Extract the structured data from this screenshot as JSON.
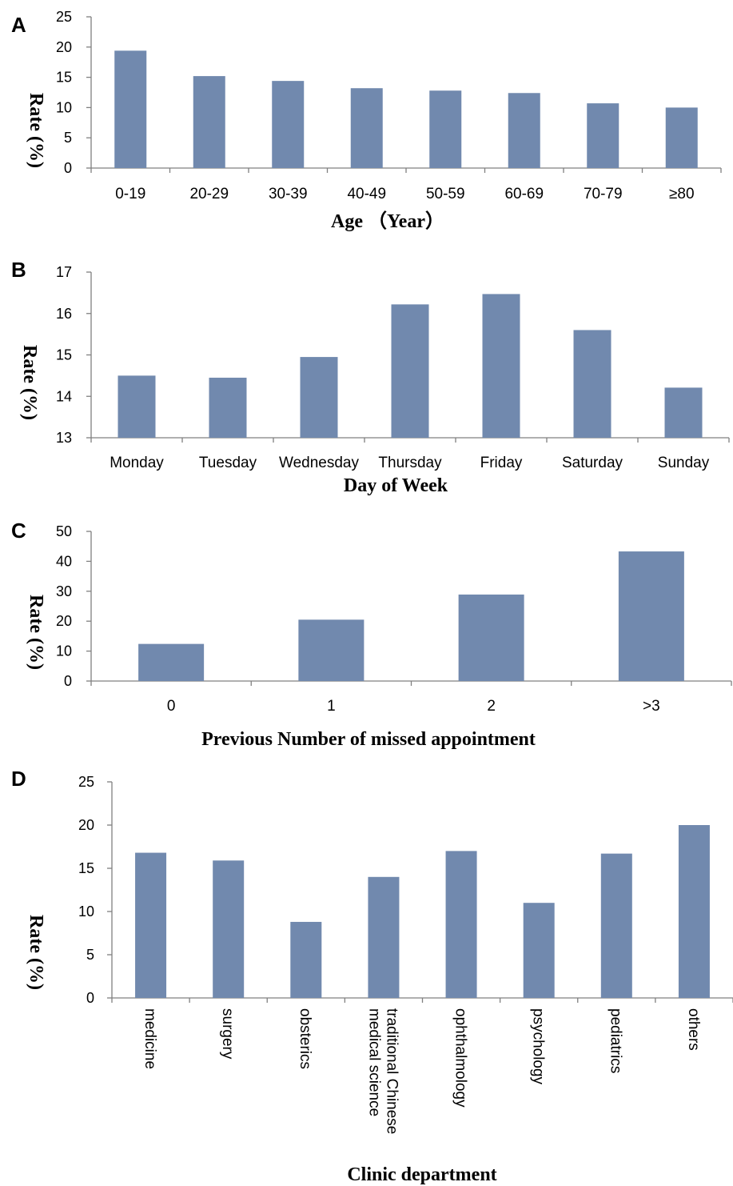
{
  "colors": {
    "bar": "#7189ae",
    "axis": "#808080"
  },
  "chart_data": [
    {
      "panel": "A",
      "type": "bar",
      "categories": [
        "0-19",
        "20-29",
        "30-39",
        "40-49",
        "50-59",
        "60-69",
        "70-79",
        "≥80"
      ],
      "values": [
        19.4,
        15.2,
        14.4,
        13.2,
        12.8,
        12.4,
        10.7,
        10.0
      ],
      "xlabel": "Age （Year）",
      "ylabel": "Rate (%)",
      "ylim": [
        0,
        25
      ],
      "yticks": [
        0,
        5,
        10,
        15,
        20,
        25
      ],
      "grid": false,
      "legend": "none"
    },
    {
      "panel": "B",
      "type": "bar",
      "categories": [
        "Monday",
        "Tuesday",
        "Wednesday",
        "Thursday",
        "Friday",
        "Saturday",
        "Sunday"
      ],
      "values": [
        14.5,
        14.45,
        14.95,
        16.22,
        16.47,
        15.6,
        14.21
      ],
      "xlabel": "Day of Week",
      "ylabel": "Rate (%)",
      "ylim": [
        13,
        17
      ],
      "yticks": [
        13,
        14,
        15,
        16,
        17
      ],
      "grid": false,
      "legend": "none"
    },
    {
      "panel": "C",
      "type": "bar",
      "categories": [
        "0",
        "1",
        "2",
        ">3"
      ],
      "values": [
        12.4,
        20.5,
        28.9,
        43.3
      ],
      "xlabel": "Previous Number of missed appointment",
      "ylabel": "Rate (%)",
      "ylim": [
        0,
        50
      ],
      "yticks": [
        0,
        10,
        20,
        30,
        40,
        50
      ],
      "grid": false,
      "legend": "none"
    },
    {
      "panel": "D",
      "type": "bar",
      "categories": [
        "medicine",
        "surgery",
        "obsterics",
        "traditional Chinese medical science",
        "ophthalmology",
        "psychology",
        "pediatrics",
        "others"
      ],
      "category_lines": [
        [
          "medicine"
        ],
        [
          "surgery"
        ],
        [
          "obsterics"
        ],
        [
          "traditional Chinese",
          "medical science"
        ],
        [
          "ophthalmology"
        ],
        [
          "psychology"
        ],
        [
          "pediatrics"
        ],
        [
          "others"
        ]
      ],
      "values": [
        16.8,
        15.9,
        8.8,
        14.0,
        17.0,
        11.0,
        16.7,
        20.0
      ],
      "xlabel": "Clinic department",
      "ylabel": "Rate (%)",
      "ylim": [
        0,
        25
      ],
      "yticks": [
        0,
        5,
        10,
        15,
        20,
        25
      ],
      "grid": false,
      "legend": "none",
      "category_label_orientation": "vertical"
    }
  ]
}
